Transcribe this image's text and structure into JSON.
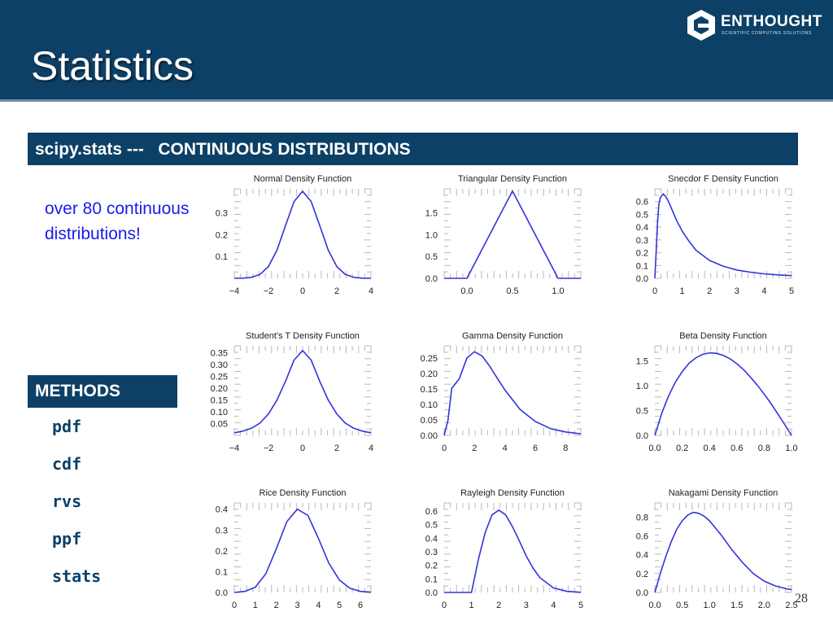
{
  "slide": {
    "title": "Statistics",
    "logo_text": "ENTHOUGHT",
    "logo_tagline": "SCIENTIFIC COMPUTING SOLUTIONS",
    "section_header": "scipy.stats ---   CONTINUOUS DISTRIBUTIONS",
    "note": "over 80 continuous distributions!",
    "methods_header": "METHODS",
    "methods": [
      "pdf",
      "cdf",
      "rvs",
      "ppf",
      "stats"
    ],
    "page_number": "28"
  },
  "colors": {
    "header_bg": "#0d4066",
    "curve": "#3333dd",
    "note_text": "#1a1aee"
  },
  "chart_data": [
    {
      "type": "line",
      "title": "Normal Density Function",
      "xlim": [
        -4,
        4
      ],
      "ylim": [
        0,
        0.41
      ],
      "xticks": [
        -4,
        -2,
        0,
        2,
        4
      ],
      "xtick_labels": [
        "−4",
        "−2",
        "0",
        "2",
        "4"
      ],
      "yticks": [
        0.1,
        0.2,
        0.3
      ],
      "ytick_labels": [
        "0.1",
        "0.2",
        "0.3"
      ],
      "series": [
        {
          "x": [
            -4,
            -3.5,
            -3,
            -2.5,
            -2,
            -1.5,
            -1,
            -0.5,
            0,
            0.5,
            1,
            1.5,
            2,
            2.5,
            3,
            3.5,
            4
          ],
          "y": [
            0.0001,
            0.0009,
            0.0044,
            0.0175,
            0.054,
            0.1295,
            0.242,
            0.352,
            0.399,
            0.352,
            0.242,
            0.1295,
            0.054,
            0.0175,
            0.0044,
            0.0009,
            0.0001
          ]
        }
      ]
    },
    {
      "type": "line",
      "title": "Triangular Density Function",
      "xlim": [
        -0.25,
        1.25
      ],
      "ylim": [
        0,
        2.05
      ],
      "xticks": [
        0,
        0.5,
        1
      ],
      "xtick_labels": [
        "0.0",
        "0.5",
        "1.0"
      ],
      "yticks": [
        0,
        0.5,
        1,
        1.5
      ],
      "ytick_labels": [
        "0.0",
        "0.5",
        "1.0",
        "1.5"
      ],
      "series": [
        {
          "x": [
            -0.25,
            0,
            0.5,
            1,
            1.25
          ],
          "y": [
            0,
            0,
            2,
            0,
            0
          ]
        }
      ]
    },
    {
      "type": "line",
      "title": "Snecdor F Density Function",
      "xlim": [
        0,
        5
      ],
      "ylim": [
        0,
        0.7
      ],
      "xticks": [
        0,
        1,
        2,
        3,
        4,
        5
      ],
      "xtick_labels": [
        "0",
        "1",
        "2",
        "3",
        "4",
        "5"
      ],
      "yticks": [
        0,
        0.1,
        0.2,
        0.3,
        0.4,
        0.5,
        0.6
      ],
      "ytick_labels": [
        "0.0",
        "0.1",
        "0.2",
        "0.3",
        "0.4",
        "0.5",
        "0.6"
      ],
      "series": [
        {
          "x": [
            0,
            0.05,
            0.1,
            0.15,
            0.2,
            0.3,
            0.4,
            0.5,
            0.6,
            0.8,
            1.0,
            1.25,
            1.5,
            2,
            2.5,
            3,
            3.5,
            4,
            4.5,
            5
          ],
          "y": [
            0,
            0.22,
            0.45,
            0.58,
            0.63,
            0.66,
            0.64,
            0.6,
            0.55,
            0.45,
            0.37,
            0.29,
            0.22,
            0.14,
            0.095,
            0.065,
            0.048,
            0.035,
            0.027,
            0.021
          ]
        }
      ]
    },
    {
      "type": "line",
      "title": "Student's T Density Function",
      "xlim": [
        -4,
        4
      ],
      "ylim": [
        0,
        0.38
      ],
      "xticks": [
        -4,
        -2,
        0,
        2,
        4
      ],
      "xtick_labels": [
        "−4",
        "−2",
        "0",
        "2",
        "4"
      ],
      "yticks": [
        0.05,
        0.1,
        0.15,
        0.2,
        0.25,
        0.3,
        0.35
      ],
      "ytick_labels": [
        "0.05",
        "0.10",
        "0.15",
        "0.20",
        "0.25",
        "0.30",
        "0.35"
      ],
      "series": [
        {
          "x": [
            -4,
            -3.5,
            -3,
            -2.5,
            -2,
            -1.5,
            -1,
            -0.5,
            0,
            0.5,
            1,
            1.5,
            2,
            2.5,
            3,
            3.5,
            4
          ],
          "y": [
            0.011,
            0.018,
            0.03,
            0.052,
            0.091,
            0.15,
            0.23,
            0.32,
            0.36,
            0.32,
            0.23,
            0.15,
            0.091,
            0.052,
            0.03,
            0.018,
            0.011
          ]
        }
      ]
    },
    {
      "type": "line",
      "title": "Gamma Density Function",
      "xlim": [
        0,
        9
      ],
      "ylim": [
        0,
        0.29
      ],
      "xticks": [
        0,
        2,
        4,
        6,
        8
      ],
      "xtick_labels": [
        "0",
        "2",
        "4",
        "6",
        "8"
      ],
      "yticks": [
        0,
        0.05,
        0.1,
        0.15,
        0.2,
        0.25
      ],
      "ytick_labels": [
        "0.00",
        "0.05",
        "0.10",
        "0.15",
        "0.20",
        "0.25"
      ],
      "series": [
        {
          "x": [
            0,
            0.25,
            0.5,
            1,
            1.5,
            2,
            2.5,
            3,
            3.5,
            4,
            5,
            6,
            7,
            8,
            9
          ],
          "y": [
            0,
            0.049,
            0.152,
            0.184,
            0.251,
            0.271,
            0.257,
            0.224,
            0.185,
            0.147,
            0.084,
            0.045,
            0.022,
            0.011,
            0.005
          ]
        }
      ]
    },
    {
      "type": "line",
      "title": "Beta Density Function",
      "xlim": [
        0,
        1
      ],
      "ylim": [
        0,
        1.8
      ],
      "xticks": [
        0,
        0.2,
        0.4,
        0.6,
        0.8,
        1
      ],
      "xtick_labels": [
        "0.0",
        "0.2",
        "0.4",
        "0.6",
        "0.8",
        "1.0"
      ],
      "yticks": [
        0,
        0.5,
        1,
        1.5
      ],
      "ytick_labels": [
        "0.0",
        "0.5",
        "1.0",
        "1.5"
      ],
      "series": [
        {
          "x": [
            0,
            0.05,
            0.1,
            0.15,
            0.2,
            0.25,
            0.3,
            0.35,
            0.4,
            0.45,
            0.5,
            0.55,
            0.6,
            0.65,
            0.7,
            0.75,
            0.8,
            0.85,
            0.9,
            0.95,
            1
          ],
          "y": [
            0,
            0.44,
            0.79,
            1.07,
            1.28,
            1.45,
            1.56,
            1.63,
            1.66,
            1.65,
            1.61,
            1.54,
            1.44,
            1.32,
            1.17,
            1.01,
            0.83,
            0.64,
            0.43,
            0.22,
            0
          ]
        }
      ]
    },
    {
      "type": "line",
      "title": "Rice Density Function",
      "xlim": [
        0,
        6.5
      ],
      "ylim": [
        0,
        0.43
      ],
      "xticks": [
        0,
        1,
        2,
        3,
        4,
        5,
        6
      ],
      "xtick_labels": [
        "0",
        "1",
        "2",
        "3",
        "4",
        "5",
        "6"
      ],
      "yticks": [
        0,
        0.1,
        0.2,
        0.3,
        0.4
      ],
      "ytick_labels": [
        "0.0",
        "0.1",
        "0.2",
        "0.3",
        "0.4"
      ],
      "series": [
        {
          "x": [
            0,
            0.5,
            1,
            1.5,
            2,
            2.5,
            3,
            3.5,
            4,
            4.5,
            5,
            5.5,
            6,
            6.5
          ],
          "y": [
            0,
            0.005,
            0.025,
            0.09,
            0.21,
            0.34,
            0.4,
            0.37,
            0.26,
            0.14,
            0.06,
            0.02,
            0.005,
            0.001
          ]
        }
      ]
    },
    {
      "type": "line",
      "title": "Rayleigh Density Function",
      "xlim": [
        0,
        5
      ],
      "ylim": [
        0,
        0.66
      ],
      "xticks": [
        0,
        1,
        2,
        3,
        4,
        5
      ],
      "xtick_labels": [
        "0",
        "1",
        "2",
        "3",
        "4",
        "5"
      ],
      "yticks": [
        0,
        0.1,
        0.2,
        0.3,
        0.4,
        0.5,
        0.6
      ],
      "ytick_labels": [
        "0.0",
        "0.1",
        "0.2",
        "0.3",
        "0.4",
        "0.5",
        "0.6"
      ],
      "series": [
        {
          "x": [
            0,
            1,
            1.25,
            1.5,
            1.75,
            2,
            2.25,
            2.5,
            2.75,
            3,
            3.25,
            3.5,
            4,
            4.5,
            5
          ],
          "y": [
            0,
            0,
            0.242,
            0.441,
            0.572,
            0.607,
            0.572,
            0.485,
            0.38,
            0.27,
            0.18,
            0.11,
            0.033,
            0.008,
            0.001
          ]
        }
      ]
    },
    {
      "type": "line",
      "title": "Nakagami Density Function",
      "xlim": [
        0,
        2.5
      ],
      "ylim": [
        0,
        0.95
      ],
      "xticks": [
        0,
        0.5,
        1,
        1.5,
        2,
        2.5
      ],
      "xtick_labels": [
        "0.0",
        "0.5",
        "1.0",
        "1.5",
        "2.0",
        "2.5"
      ],
      "yticks": [
        0,
        0.2,
        0.4,
        0.6,
        0.8
      ],
      "ytick_labels": [
        "0.0",
        "0.2",
        "0.4",
        "0.6",
        "0.8"
      ],
      "series": [
        {
          "x": [
            0,
            0.1,
            0.2,
            0.3,
            0.4,
            0.5,
            0.6,
            0.7,
            0.8,
            0.9,
            1.0,
            1.2,
            1.4,
            1.6,
            1.8,
            2.0,
            2.2,
            2.4,
            2.5
          ],
          "y": [
            0,
            0.2,
            0.38,
            0.54,
            0.67,
            0.76,
            0.82,
            0.85,
            0.84,
            0.81,
            0.76,
            0.62,
            0.46,
            0.32,
            0.2,
            0.12,
            0.07,
            0.04,
            0.03
          ]
        }
      ]
    }
  ]
}
